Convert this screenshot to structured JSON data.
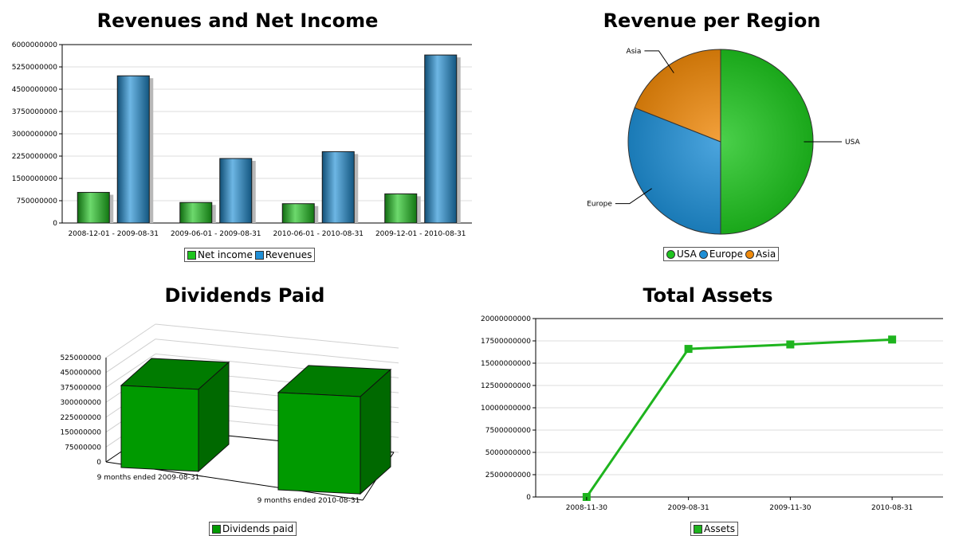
{
  "chart_data": [
    {
      "type": "bar",
      "title": "Revenues and Net Income",
      "categories": [
        "2008-12-01 - 2009-08-31",
        "2009-06-01 - 2009-08-31",
        "2010-06-01 - 2010-08-31",
        "2009-12-01 - 2010-08-31"
      ],
      "series": [
        {
          "name": "Net income",
          "color": "#1ec41e",
          "values": [
            1030000000,
            690000000,
            650000000,
            980000000
          ]
        },
        {
          "name": "Revenues",
          "color": "#1f8fd6",
          "values": [
            4950000000,
            2170000000,
            2400000000,
            5650000000
          ]
        }
      ],
      "yticks": [
        "0",
        "750000000",
        "1500000000",
        "2250000000",
        "3000000000",
        "3750000000",
        "4500000000",
        "5250000000",
        "6000000000"
      ],
      "ylim": [
        0,
        6000000000
      ],
      "grid": true,
      "legend": "bottom"
    },
    {
      "type": "pie",
      "title": "Revenue per Region",
      "labels": [
        "USA",
        "Europe",
        "Asia"
      ],
      "values": [
        50,
        31,
        19
      ],
      "colors": [
        "#1ec41e",
        "#1f8fd6",
        "#f08a0b"
      ],
      "legend": "bottom"
    },
    {
      "type": "bar",
      "title": "Dividends Paid",
      "categories": [
        "9 months ended 2009-08-31",
        "9 months ended 2010-08-31"
      ],
      "series": [
        {
          "name": "Dividends paid",
          "color": "#009a00",
          "values": [
            430000000,
            510000000
          ]
        }
      ],
      "yticks": [
        "0",
        "75000000",
        "150000000",
        "225000000",
        "300000000",
        "375000000",
        "450000000",
        "525000000"
      ],
      "ylim": [
        0,
        525000000
      ],
      "style": "3d",
      "legend": "bottom"
    },
    {
      "type": "line",
      "title": "Total Assets",
      "categories": [
        "2008-11-30",
        "2009-08-31",
        "2009-11-30",
        "2010-08-31"
      ],
      "series": [
        {
          "name": "Assets",
          "color": "#1eb41e",
          "values": [
            0,
            16600000000,
            17100000000,
            17650000000
          ]
        }
      ],
      "yticks": [
        "0",
        "2500000000",
        "5000000000",
        "7500000000",
        "10000000000",
        "12500000000",
        "15000000000",
        "17500000000",
        "20000000000"
      ],
      "ylim": [
        0,
        20000000000
      ],
      "grid": true,
      "legend": "bottom"
    }
  ]
}
